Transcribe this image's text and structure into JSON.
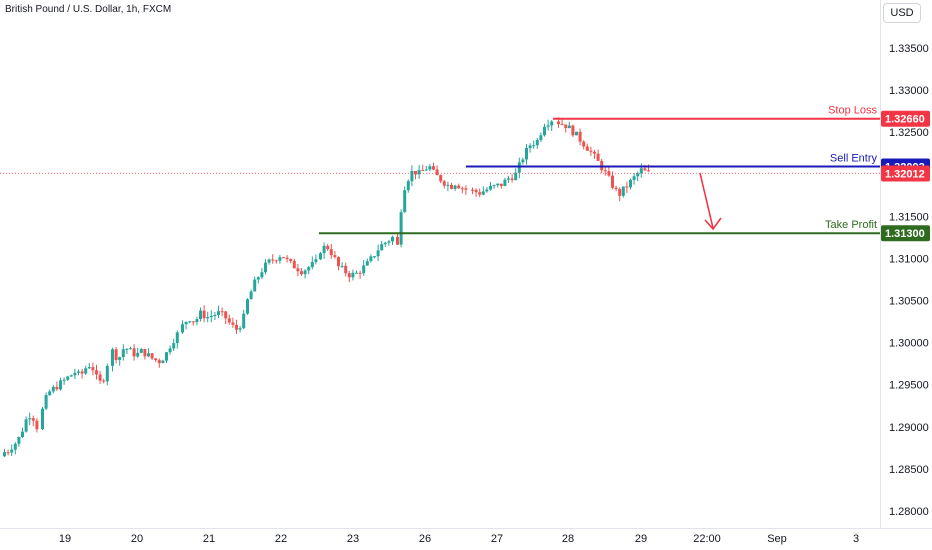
{
  "header": {
    "symbol_title": "British Pound / U.S. Dollar, 1h, FXCM",
    "currency": "USD"
  },
  "chart_data": {
    "type": "candlestick",
    "title": "British Pound / U.S. Dollar, 1h, FXCM",
    "currency": "USD",
    "ylim": [
      1.2775,
      1.3395
    ],
    "y_ticks": [
      "1.33500",
      "1.33000",
      "1.32500",
      "1.32000",
      "1.31500",
      "1.31000",
      "1.30500",
      "1.30000",
      "1.29500",
      "1.29000",
      "1.28500",
      "1.28000"
    ],
    "y_tick_values": [
      1.335,
      1.33,
      1.325,
      1.32,
      1.315,
      1.31,
      1.305,
      1.3,
      1.295,
      1.29,
      1.285,
      1.28
    ],
    "x_ticks": [
      "19",
      "20",
      "21",
      "22",
      "23",
      "26",
      "27",
      "28",
      "29",
      "22:00",
      "Sep",
      "3"
    ],
    "grid": false,
    "colors": {
      "up": "#26a69a",
      "down": "#ef5350"
    },
    "current_price": {
      "value": "1.32012",
      "color": "#f23645"
    },
    "levels": [
      {
        "name": "Stop Loss",
        "value": "1.32660",
        "price": 1.3266,
        "color": "#f23645"
      },
      {
        "name": "Sell Entry",
        "value": "1.32093",
        "price": 1.32093,
        "color": "#1a1ab8"
      },
      {
        "name": "Take Profit",
        "value": "1.31300",
        "price": 1.313,
        "color": "#2e6b1e"
      }
    ],
    "projection_arrow": {
      "direction": "down",
      "color": "#f23645"
    },
    "close_path": [
      [
        1.287,
        1.2872,
        1.2878,
        1.2882,
        1.289,
        1.2905,
        1.2915,
        1.2912,
        1.29
      ],
      [
        1.292,
        1.294,
        1.2945,
        1.295,
        1.2955,
        1.296,
        1.2965,
        1.296,
        1.297,
        1.2975,
        1.2958,
        1.295,
        1.2975
      ],
      [
        1.299,
        1.298,
        1.2995,
        1.299,
        1.2985,
        1.299,
        1.2985,
        1.298,
        1.2978,
        1.2985,
        1.3,
        1.301
      ],
      [
        1.302,
        1.303,
        1.3025,
        1.3035,
        1.303,
        1.3033,
        1.3035,
        1.303,
        1.302,
        1.3015,
        1.303
      ],
      [
        1.305,
        1.307,
        1.3085,
        1.3095,
        1.31,
        1.3105,
        1.3095,
        1.309,
        1.3085,
        1.309,
        1.3095
      ],
      [
        1.311,
        1.3115,
        1.3105,
        1.309,
        1.3085,
        1.308,
        1.3082,
        1.3088,
        1.3095,
        1.3105,
        1.3115,
        1.312,
        1.3125
      ],
      [
        1.3115,
        1.318,
        1.3195,
        1.3205,
        1.32,
        1.3205,
        1.321,
        1.32,
        1.3195,
        1.319,
        1.3185,
        1.319,
        1.3185,
        1.3182
      ],
      [
        1.318,
        1.3178,
        1.3182,
        1.3185,
        1.3188,
        1.3195,
        1.32,
        1.322,
        1.3235,
        1.324,
        1.326,
        1.3265
      ],
      [
        1.3262,
        1.3258,
        1.325,
        1.324,
        1.323,
        1.3218,
        1.3205,
        1.319,
        1.3175,
        1.3185,
        1.3195,
        1.3205,
        1.3201
      ]
    ]
  }
}
